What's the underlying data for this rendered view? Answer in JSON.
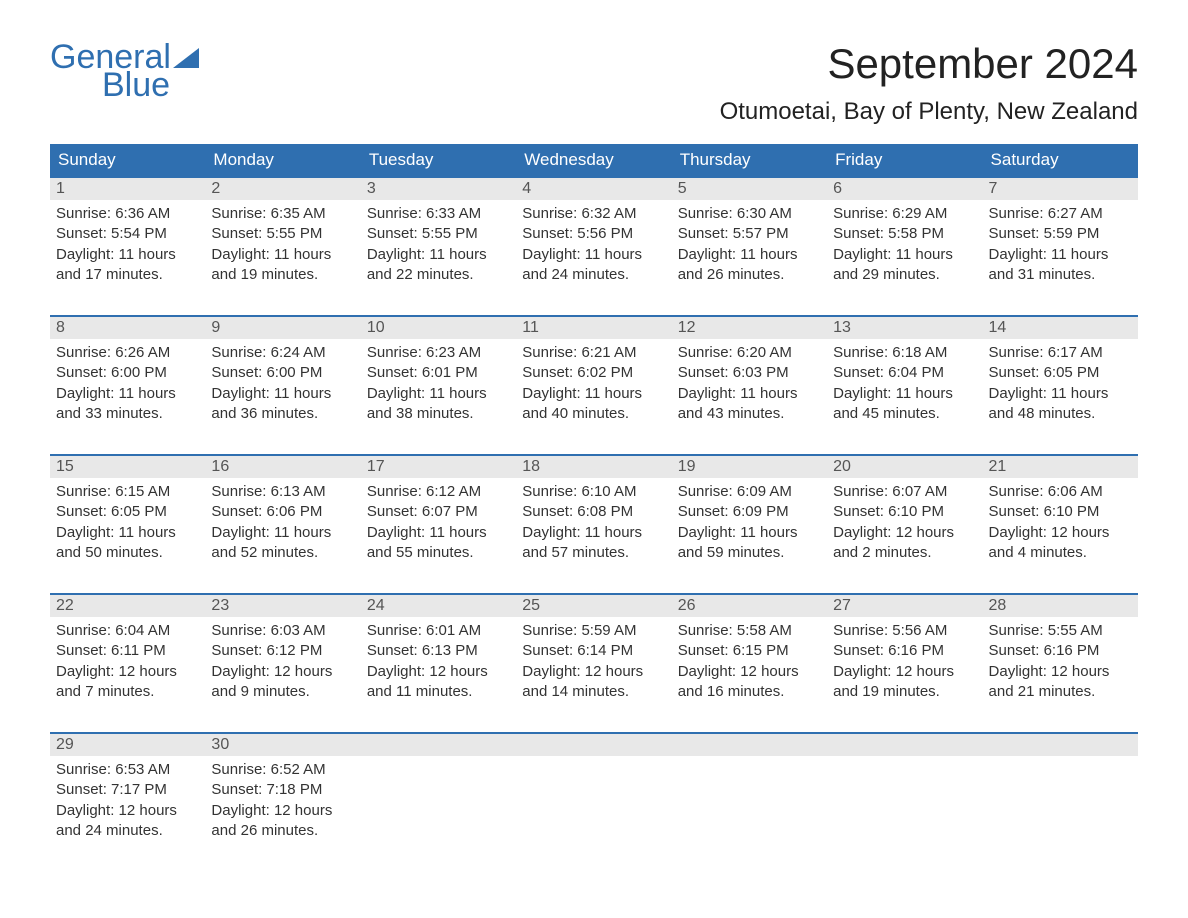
{
  "brand": {
    "part1": "General",
    "part2": "Blue"
  },
  "title": "September 2024",
  "location": "Otumoetai, Bay of Plenty, New Zealand",
  "colors": {
    "brand_blue": "#2f6fb0",
    "header_bg": "#2f6fb0",
    "header_text": "#ffffff",
    "daynum_bg": "#e8e8e8",
    "daynum_text": "#555555",
    "body_text": "#333333",
    "border": "#2f6fb0",
    "page_bg": "#ffffff"
  },
  "days_of_week": [
    "Sunday",
    "Monday",
    "Tuesday",
    "Wednesday",
    "Thursday",
    "Friday",
    "Saturday"
  ],
  "weeks": [
    [
      {
        "num": "1",
        "sunrise": "Sunrise: 6:36 AM",
        "sunset": "Sunset: 5:54 PM",
        "dl1": "Daylight: 11 hours",
        "dl2": "and 17 minutes."
      },
      {
        "num": "2",
        "sunrise": "Sunrise: 6:35 AM",
        "sunset": "Sunset: 5:55 PM",
        "dl1": "Daylight: 11 hours",
        "dl2": "and 19 minutes."
      },
      {
        "num": "3",
        "sunrise": "Sunrise: 6:33 AM",
        "sunset": "Sunset: 5:55 PM",
        "dl1": "Daylight: 11 hours",
        "dl2": "and 22 minutes."
      },
      {
        "num": "4",
        "sunrise": "Sunrise: 6:32 AM",
        "sunset": "Sunset: 5:56 PM",
        "dl1": "Daylight: 11 hours",
        "dl2": "and 24 minutes."
      },
      {
        "num": "5",
        "sunrise": "Sunrise: 6:30 AM",
        "sunset": "Sunset: 5:57 PM",
        "dl1": "Daylight: 11 hours",
        "dl2": "and 26 minutes."
      },
      {
        "num": "6",
        "sunrise": "Sunrise: 6:29 AM",
        "sunset": "Sunset: 5:58 PM",
        "dl1": "Daylight: 11 hours",
        "dl2": "and 29 minutes."
      },
      {
        "num": "7",
        "sunrise": "Sunrise: 6:27 AM",
        "sunset": "Sunset: 5:59 PM",
        "dl1": "Daylight: 11 hours",
        "dl2": "and 31 minutes."
      }
    ],
    [
      {
        "num": "8",
        "sunrise": "Sunrise: 6:26 AM",
        "sunset": "Sunset: 6:00 PM",
        "dl1": "Daylight: 11 hours",
        "dl2": "and 33 minutes."
      },
      {
        "num": "9",
        "sunrise": "Sunrise: 6:24 AM",
        "sunset": "Sunset: 6:00 PM",
        "dl1": "Daylight: 11 hours",
        "dl2": "and 36 minutes."
      },
      {
        "num": "10",
        "sunrise": "Sunrise: 6:23 AM",
        "sunset": "Sunset: 6:01 PM",
        "dl1": "Daylight: 11 hours",
        "dl2": "and 38 minutes."
      },
      {
        "num": "11",
        "sunrise": "Sunrise: 6:21 AM",
        "sunset": "Sunset: 6:02 PM",
        "dl1": "Daylight: 11 hours",
        "dl2": "and 40 minutes."
      },
      {
        "num": "12",
        "sunrise": "Sunrise: 6:20 AM",
        "sunset": "Sunset: 6:03 PM",
        "dl1": "Daylight: 11 hours",
        "dl2": "and 43 minutes."
      },
      {
        "num": "13",
        "sunrise": "Sunrise: 6:18 AM",
        "sunset": "Sunset: 6:04 PM",
        "dl1": "Daylight: 11 hours",
        "dl2": "and 45 minutes."
      },
      {
        "num": "14",
        "sunrise": "Sunrise: 6:17 AM",
        "sunset": "Sunset: 6:05 PM",
        "dl1": "Daylight: 11 hours",
        "dl2": "and 48 minutes."
      }
    ],
    [
      {
        "num": "15",
        "sunrise": "Sunrise: 6:15 AM",
        "sunset": "Sunset: 6:05 PM",
        "dl1": "Daylight: 11 hours",
        "dl2": "and 50 minutes."
      },
      {
        "num": "16",
        "sunrise": "Sunrise: 6:13 AM",
        "sunset": "Sunset: 6:06 PM",
        "dl1": "Daylight: 11 hours",
        "dl2": "and 52 minutes."
      },
      {
        "num": "17",
        "sunrise": "Sunrise: 6:12 AM",
        "sunset": "Sunset: 6:07 PM",
        "dl1": "Daylight: 11 hours",
        "dl2": "and 55 minutes."
      },
      {
        "num": "18",
        "sunrise": "Sunrise: 6:10 AM",
        "sunset": "Sunset: 6:08 PM",
        "dl1": "Daylight: 11 hours",
        "dl2": "and 57 minutes."
      },
      {
        "num": "19",
        "sunrise": "Sunrise: 6:09 AM",
        "sunset": "Sunset: 6:09 PM",
        "dl1": "Daylight: 11 hours",
        "dl2": "and 59 minutes."
      },
      {
        "num": "20",
        "sunrise": "Sunrise: 6:07 AM",
        "sunset": "Sunset: 6:10 PM",
        "dl1": "Daylight: 12 hours",
        "dl2": "and 2 minutes."
      },
      {
        "num": "21",
        "sunrise": "Sunrise: 6:06 AM",
        "sunset": "Sunset: 6:10 PM",
        "dl1": "Daylight: 12 hours",
        "dl2": "and 4 minutes."
      }
    ],
    [
      {
        "num": "22",
        "sunrise": "Sunrise: 6:04 AM",
        "sunset": "Sunset: 6:11 PM",
        "dl1": "Daylight: 12 hours",
        "dl2": "and 7 minutes."
      },
      {
        "num": "23",
        "sunrise": "Sunrise: 6:03 AM",
        "sunset": "Sunset: 6:12 PM",
        "dl1": "Daylight: 12 hours",
        "dl2": "and 9 minutes."
      },
      {
        "num": "24",
        "sunrise": "Sunrise: 6:01 AM",
        "sunset": "Sunset: 6:13 PM",
        "dl1": "Daylight: 12 hours",
        "dl2": "and 11 minutes."
      },
      {
        "num": "25",
        "sunrise": "Sunrise: 5:59 AM",
        "sunset": "Sunset: 6:14 PM",
        "dl1": "Daylight: 12 hours",
        "dl2": "and 14 minutes."
      },
      {
        "num": "26",
        "sunrise": "Sunrise: 5:58 AM",
        "sunset": "Sunset: 6:15 PM",
        "dl1": "Daylight: 12 hours",
        "dl2": "and 16 minutes."
      },
      {
        "num": "27",
        "sunrise": "Sunrise: 5:56 AM",
        "sunset": "Sunset: 6:16 PM",
        "dl1": "Daylight: 12 hours",
        "dl2": "and 19 minutes."
      },
      {
        "num": "28",
        "sunrise": "Sunrise: 5:55 AM",
        "sunset": "Sunset: 6:16 PM",
        "dl1": "Daylight: 12 hours",
        "dl2": "and 21 minutes."
      }
    ],
    [
      {
        "num": "29",
        "sunrise": "Sunrise: 6:53 AM",
        "sunset": "Sunset: 7:17 PM",
        "dl1": "Daylight: 12 hours",
        "dl2": "and 24 minutes."
      },
      {
        "num": "30",
        "sunrise": "Sunrise: 6:52 AM",
        "sunset": "Sunset: 7:18 PM",
        "dl1": "Daylight: 12 hours",
        "dl2": "and 26 minutes."
      },
      {
        "num": "",
        "sunrise": "",
        "sunset": "",
        "dl1": "",
        "dl2": ""
      },
      {
        "num": "",
        "sunrise": "",
        "sunset": "",
        "dl1": "",
        "dl2": ""
      },
      {
        "num": "",
        "sunrise": "",
        "sunset": "",
        "dl1": "",
        "dl2": ""
      },
      {
        "num": "",
        "sunrise": "",
        "sunset": "",
        "dl1": "",
        "dl2": ""
      },
      {
        "num": "",
        "sunrise": "",
        "sunset": "",
        "dl1": "",
        "dl2": ""
      }
    ]
  ]
}
